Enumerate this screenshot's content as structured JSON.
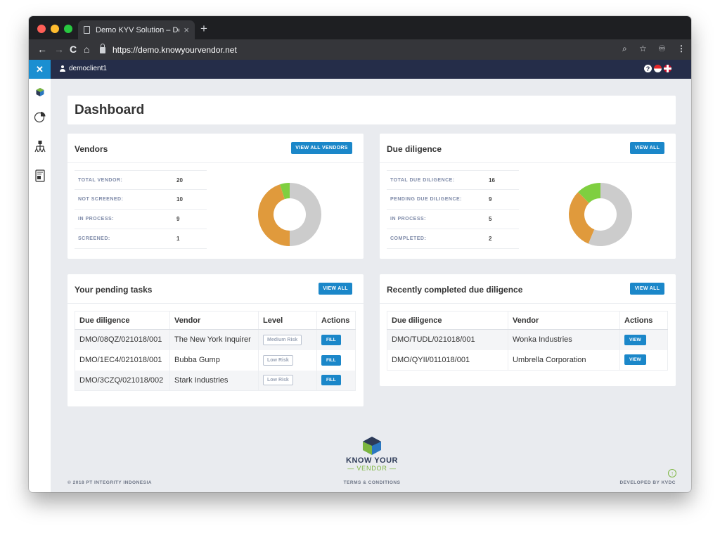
{
  "browser": {
    "tab_title": "Demo KYV Solution – Demo of",
    "url": "https://demo.knowyourvendor.net"
  },
  "topbar": {
    "username": "democlient1",
    "help_glyph": "?"
  },
  "page_title": "Dashboard",
  "vendors": {
    "title": "Vendors",
    "button": "VIEW ALL VENDORS",
    "stats": [
      {
        "label": "TOTAL VENDOR:",
        "value": "20"
      },
      {
        "label": "NOT SCREENED:",
        "value": "10"
      },
      {
        "label": "IN PROCESS:",
        "value": "9"
      },
      {
        "label": "SCREENED:",
        "value": "1"
      }
    ],
    "chart_data": {
      "type": "pie",
      "categories": [
        "Not screened",
        "In process",
        "Screened"
      ],
      "values": [
        10,
        9,
        1
      ],
      "colors": [
        "#cccccc",
        "#e09a3c",
        "#7fcf40"
      ]
    }
  },
  "due_diligence": {
    "title": "Due diligence",
    "button": "VIEW ALL",
    "stats": [
      {
        "label": "TOTAL DUE DILIGENCE:",
        "value": "16"
      },
      {
        "label": "PENDING DUE DILIGENCE:",
        "value": "9"
      },
      {
        "label": "IN PROCESS:",
        "value": "5"
      },
      {
        "label": "COMPLETED:",
        "value": "2"
      }
    ],
    "chart_data": {
      "type": "pie",
      "categories": [
        "Pending",
        "In process",
        "Completed"
      ],
      "values": [
        9,
        5,
        2
      ],
      "colors": [
        "#cccccc",
        "#e09a3c",
        "#7fcf40"
      ]
    }
  },
  "pending_tasks": {
    "title": "Your pending tasks",
    "button": "VIEW ALL",
    "columns": [
      "Due diligence",
      "Vendor",
      "Level",
      "Actions"
    ],
    "rows": [
      {
        "dd": "DMO/08QZ/021018/001",
        "vendor": "The New York Inquirer",
        "level": "Medium Risk",
        "action": "FILL"
      },
      {
        "dd": "DMO/1EC4/021018/001",
        "vendor": "Bubba Gump",
        "level": "Low Risk",
        "action": "FILL"
      },
      {
        "dd": "DMO/3CZQ/021018/002",
        "vendor": "Stark Industries",
        "level": "Low Risk",
        "action": "FILL"
      }
    ]
  },
  "recent": {
    "title": "Recently completed due diligence",
    "button": "VIEW ALL",
    "columns": [
      "Due diligence",
      "Vendor",
      "Actions"
    ],
    "rows": [
      {
        "dd": "DMO/TUDL/021018/001",
        "vendor": "Wonka Industries",
        "action": "VIEW"
      },
      {
        "dd": "DMO/QYII/011018/001",
        "vendor": "Umbrella Corporation",
        "action": "VIEW"
      }
    ]
  },
  "footer": {
    "logo_line1": "KNOW YOUR",
    "logo_line2": "— VENDOR —",
    "copyright": "© 2018 PT INTEGRITY INDONESIA",
    "terms": "TERMS & CONDITIONS",
    "developed": "DEVELOPED BY KVDC"
  },
  "icons": [
    "lock-icon",
    "user-icon",
    "help-icon",
    "flag-indonesia-icon",
    "flag-uk-icon",
    "close-icon",
    "pie-chart-icon",
    "org-chart-icon",
    "document-icon",
    "scroll-top-icon"
  ]
}
